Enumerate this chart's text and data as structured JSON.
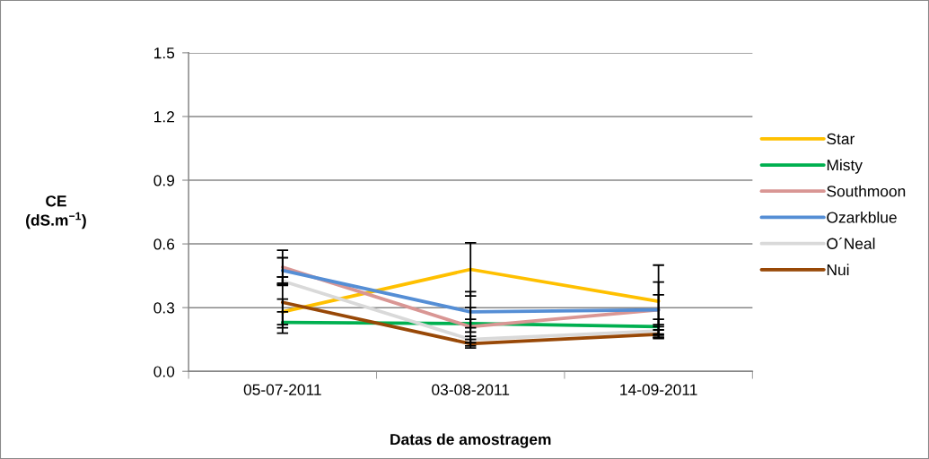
{
  "chart_data": {
    "type": "line",
    "xlabel": "Datas de amostragem",
    "ylabel": "CE\n(dS.m$^{−1}$)",
    "categories": [
      "05-07-2011",
      "03-08-2011",
      "14-09-2011"
    ],
    "series": [
      {
        "name": "Star",
        "color": "#ffc000",
        "values": [
          0.28,
          0.48,
          0.33
        ],
        "errors": [
          0.06,
          0.125,
          0.17
        ]
      },
      {
        "name": "Misty",
        "color": "#00b050",
        "values": [
          0.23,
          0.225,
          0.21
        ],
        "errors": [
          0.05,
          0.02,
          0.035
        ]
      },
      {
        "name": "Southmoon",
        "color": "#d99694",
        "values": [
          0.49,
          0.21,
          0.29
        ],
        "errors": [
          0.08,
          0.09,
          0.07
        ]
      },
      {
        "name": "Ozarkblue",
        "color": "#558ed5",
        "values": [
          0.475,
          0.28,
          0.29
        ],
        "errors": [
          0.06,
          0.095,
          0.13
        ]
      },
      {
        "name": "O´Neal",
        "color": "#d9d9d9",
        "values": [
          0.425,
          0.15,
          0.19
        ],
        "errors": [
          0.02,
          0.015,
          0.02
        ]
      },
      {
        "name": "Nui",
        "color": "#984807",
        "values": [
          0.325,
          0.13,
          0.175
        ],
        "errors": [
          0.12,
          0.02,
          0.02
        ]
      }
    ],
    "ylim": [
      0,
      1.5
    ],
    "yticks": [
      {
        "value": 0,
        "label": "0.0"
      },
      0.3,
      0.6,
      0.9,
      1.2,
      1.5
    ],
    "grid": "y",
    "legend": "right",
    "marker": "none",
    "line_style": "solid"
  }
}
